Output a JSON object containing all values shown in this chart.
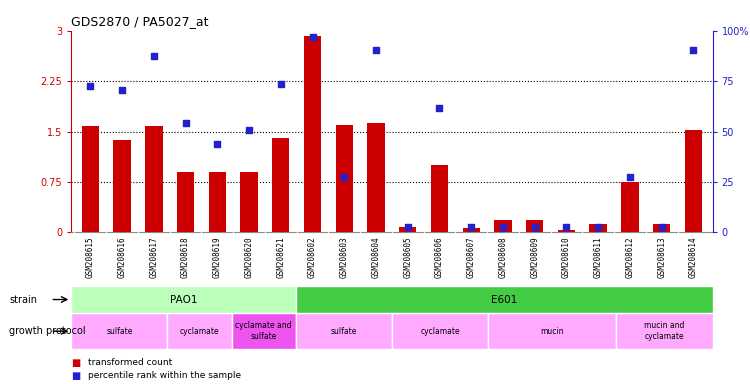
{
  "title": "GDS2870 / PA5027_at",
  "samples": [
    "GSM208615",
    "GSM208616",
    "GSM208617",
    "GSM208618",
    "GSM208619",
    "GSM208620",
    "GSM208621",
    "GSM208602",
    "GSM208603",
    "GSM208604",
    "GSM208605",
    "GSM208606",
    "GSM208607",
    "GSM208608",
    "GSM208609",
    "GSM208610",
    "GSM208611",
    "GSM208612",
    "GSM208613",
    "GSM208614"
  ],
  "bar_values": [
    1.58,
    1.38,
    1.58,
    0.9,
    0.9,
    0.9,
    1.4,
    2.92,
    1.6,
    1.62,
    0.08,
    1.0,
    0.06,
    0.18,
    0.18,
    0.04,
    0.12,
    0.75,
    0.12,
    1.52
  ],
  "dot_values_left": [
    2.18,
    2.12,
    2.62,
    1.62,
    1.32,
    1.52,
    2.2,
    2.9,
    0.82,
    2.72,
    0.08,
    1.85,
    0.08,
    0.08,
    0.08,
    0.08,
    0.08,
    0.82,
    0.08,
    2.72
  ],
  "bar_color": "#cc0000",
  "dot_color": "#2222cc",
  "ylim_left": [
    0,
    3.0
  ],
  "ylim_right": [
    0,
    100
  ],
  "yticks_left": [
    0,
    0.75,
    1.5,
    2.25,
    3.0
  ],
  "ytick_labels_left": [
    "0",
    "0.75",
    "1.5",
    "2.25",
    "3"
  ],
  "yticks_right": [
    0,
    25,
    50,
    75,
    100
  ],
  "ytick_labels_right": [
    "0",
    "25",
    "50",
    "75",
    "100%"
  ],
  "hlines": [
    0.75,
    1.5,
    2.25
  ],
  "strain_row": [
    {
      "label": "PAO1",
      "start": 0,
      "end": 7,
      "color": "#bbffbb"
    },
    {
      "label": "E601",
      "start": 7,
      "end": 20,
      "color": "#44cc44"
    }
  ],
  "protocol_row": [
    {
      "label": "sulfate",
      "start": 0,
      "end": 3,
      "color": "#ffaaff"
    },
    {
      "label": "cyclamate",
      "start": 3,
      "end": 5,
      "color": "#ffaaff"
    },
    {
      "label": "cyclamate and\nsulfate",
      "start": 5,
      "end": 7,
      "color": "#ee55ee"
    },
    {
      "label": "sulfate",
      "start": 7,
      "end": 10,
      "color": "#ffaaff"
    },
    {
      "label": "cyclamate",
      "start": 10,
      "end": 13,
      "color": "#ffaaff"
    },
    {
      "label": "mucin",
      "start": 13,
      "end": 17,
      "color": "#ffaaff"
    },
    {
      "label": "mucin and\ncyclamate",
      "start": 17,
      "end": 20,
      "color": "#ffaaff"
    }
  ],
  "background_color": "#ffffff",
  "tick_color_left": "#cc0000",
  "tick_color_right": "#2222cc",
  "xlabels_bg": "#d8d8d8",
  "chart_bg": "#ffffff"
}
